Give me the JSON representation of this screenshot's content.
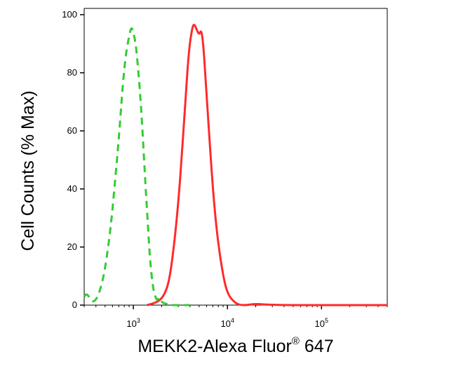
{
  "chart_data": {
    "type": "line",
    "title": "",
    "xlabel": "MEKK2-Alexa Fluor",
    "xlabel_sup": "®",
    "xlabel_suffix": " 647",
    "ylabel": "Cell Counts (% Max)",
    "x_scale": "log",
    "xlim": [
      300,
      500000
    ],
    "ylim": [
      0,
      100
    ],
    "grid": false,
    "yticks": [
      {
        "value": 0,
        "label": "0"
      },
      {
        "value": 20,
        "label": "20"
      },
      {
        "value": 40,
        "label": "40"
      },
      {
        "value": 60,
        "label": "60"
      },
      {
        "value": 80,
        "label": "80"
      },
      {
        "value": 100,
        "label": "100"
      }
    ],
    "xticks": [
      {
        "value": 1000,
        "base": "10",
        "exp": "3"
      },
      {
        "value": 10000,
        "base": "10",
        "exp": "4"
      },
      {
        "value": 100000,
        "base": "10",
        "exp": "5"
      }
    ],
    "series": [
      {
        "color": "#ff2a2a",
        "style": "solid",
        "x": [
          1400,
          1800,
          2100,
          2400,
          2700,
          3000,
          3300,
          3600,
          3900,
          4200,
          4400,
          4700,
          5000,
          5300,
          5600,
          5900,
          6300,
          6800,
          7300,
          8000,
          8800,
          9600,
          10500,
          11500,
          12500,
          14000,
          16000,
          20000,
          30000,
          100000,
          500000
        ],
        "y": [
          0,
          1,
          3,
          8,
          20,
          35,
          53,
          72,
          88,
          95,
          97,
          95,
          93,
          95,
          88,
          76,
          62,
          46,
          33,
          21,
          12,
          6,
          3,
          1.5,
          0.5,
          0,
          0,
          0.5,
          0,
          0,
          0
        ]
      },
      {
        "color": "#33cc33",
        "style": "dashed",
        "x": [
          300,
          320,
          350,
          380,
          420,
          470,
          520,
          580,
          640,
          700,
          760,
          820,
          880,
          950,
          1000,
          1060,
          1120,
          1200,
          1300,
          1400,
          1500,
          1600,
          1700,
          1800,
          1900,
          2000,
          2200,
          2500,
          3000,
          4000
        ],
        "y": [
          3,
          4,
          2,
          1,
          3,
          8,
          16,
          28,
          43,
          57,
          73,
          85,
          91,
          96,
          94,
          90,
          82,
          70,
          50,
          32,
          16,
          7,
          3,
          1.5,
          3,
          1,
          0.5,
          0,
          0,
          0
        ]
      }
    ]
  }
}
